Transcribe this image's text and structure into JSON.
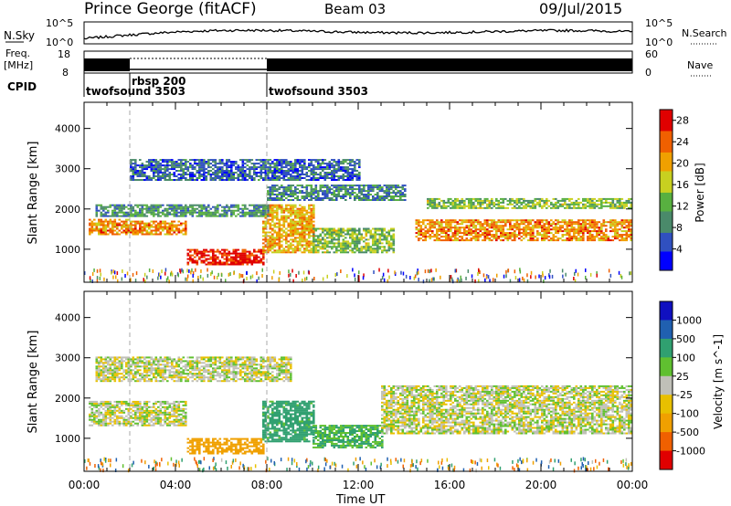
{
  "header": {
    "title": "Prince George (fitACF)",
    "beam": "Beam 03",
    "date": "09/Jul/2015"
  },
  "top_panels": {
    "nsky_label": "N.Sky",
    "nsky_ticks": [
      "10^5",
      "10^0"
    ],
    "nsearch_label": "N.Search",
    "nsearch_ticks": [
      "10^5",
      "10^0"
    ],
    "freq_label_1": "Freq.",
    "freq_label_2": "[MHz]",
    "freq_ticks": [
      "18",
      "8"
    ],
    "nave_label": "Nave",
    "nave_ticks": [
      "60",
      "0"
    ],
    "cpid_label": "CPID",
    "cpid_segments": [
      {
        "label": "twofsound 3503",
        "start_h": 0
      },
      {
        "label": "rbsp 200",
        "start_h": 2
      },
      {
        "label": "twofsound 3503",
        "start_h": 8
      }
    ]
  },
  "chart_data": [
    {
      "type": "heatmap",
      "panel": "power",
      "ylabel": "Slant Range [km]",
      "xlabel": "",
      "xlim": [
        0,
        24
      ],
      "ylim": [
        180,
        4650
      ],
      "yticks": [
        "1000",
        "2000",
        "3000",
        "4000"
      ],
      "ytick_values": [
        1000,
        2000,
        3000,
        4000
      ],
      "colorbar": {
        "label": "Power [dB]",
        "ticks": [
          "28",
          "24",
          "20",
          "16",
          "12",
          "8",
          "4"
        ],
        "tick_values": [
          28,
          24,
          20,
          16,
          12,
          8,
          4
        ],
        "range": [
          0,
          30
        ]
      },
      "bands": [
        {
          "t0": 0.2,
          "t1": 2.0,
          "r0": 1350,
          "r1": 1750,
          "value": 22
        },
        {
          "t0": 2.0,
          "t1": 4.5,
          "r0": 1350,
          "r1": 1700,
          "value": 22
        },
        {
          "t0": 4.5,
          "t1": 7.8,
          "r0": 600,
          "r1": 1000,
          "value": 28
        },
        {
          "t0": 7.8,
          "t1": 10.0,
          "r0": 900,
          "r1": 2100,
          "value": 20
        },
        {
          "t0": 10.0,
          "t1": 13.5,
          "r0": 900,
          "r1": 1500,
          "value": 14
        },
        {
          "t0": 14.5,
          "t1": 24.0,
          "r0": 1200,
          "r1": 1700,
          "value": 22
        },
        {
          "t0": 15.0,
          "t1": 24.0,
          "r0": 2000,
          "r1": 2250,
          "value": 14
        },
        {
          "t0": 0.5,
          "t1": 8.0,
          "r0": 1800,
          "r1": 2100,
          "value": 10
        },
        {
          "t0": 8.0,
          "t1": 14.0,
          "r0": 2200,
          "r1": 2600,
          "value": 9
        },
        {
          "t0": 2.0,
          "t1": 12.0,
          "r0": 2700,
          "r1": 3200,
          "value": 7
        }
      ]
    },
    {
      "type": "heatmap",
      "panel": "velocity",
      "ylabel": "Slant Range [km]",
      "xlabel": "Time UT",
      "xlim": [
        0,
        24
      ],
      "ylim": [
        180,
        4650
      ],
      "yticks": [
        "1000",
        "2000",
        "3000",
        "4000"
      ],
      "ytick_values": [
        1000,
        2000,
        3000,
        4000
      ],
      "xticks": [
        "00:00",
        "04:00",
        "08:00",
        "12:00",
        "16:00",
        "20:00",
        "00:00"
      ],
      "xtick_values": [
        0,
        4,
        8,
        12,
        16,
        20,
        24
      ],
      "colorbar": {
        "label": "Velocity [m s^-1]",
        "ticks": [
          "1000",
          "500",
          "100",
          "25",
          "-25",
          "-100",
          "-500",
          "-1000"
        ],
        "tick_values": [
          1000,
          500,
          100,
          25,
          -25,
          -100,
          -500,
          -1000
        ]
      },
      "bands": [
        {
          "t0": 0.2,
          "t1": 4.5,
          "r0": 1300,
          "r1": 1900,
          "value": 0
        },
        {
          "t0": 4.5,
          "t1": 7.8,
          "r0": 600,
          "r1": 1000,
          "value": -300
        },
        {
          "t0": 7.8,
          "t1": 10.0,
          "r0": 900,
          "r1": 1900,
          "value": 150
        },
        {
          "t0": 10.0,
          "t1": 13.0,
          "r0": 750,
          "r1": 1300,
          "value": 100
        },
        {
          "t0": 13.0,
          "t1": 24.0,
          "r0": 1100,
          "r1": 2300,
          "value": 0
        },
        {
          "t0": 0.5,
          "t1": 9.0,
          "r0": 2400,
          "r1": 3000,
          "value": 0
        }
      ]
    }
  ],
  "colors": {
    "power_scale": [
      "#0000ff",
      "#3050c0",
      "#4a8a6a",
      "#58b040",
      "#c8d020",
      "#f0a000",
      "#f06000",
      "#e00000"
    ],
    "velocity_scale": [
      "#e00000",
      "#f06000",
      "#f0a000",
      "#e8c000",
      "#c0c0b8",
      "#60c030",
      "#30a070",
      "#2060b0",
      "#1010c0"
    ],
    "ground": "#c0c0b8"
  }
}
